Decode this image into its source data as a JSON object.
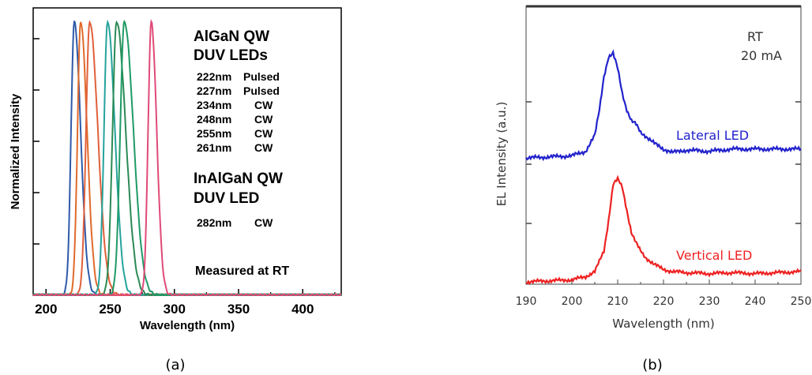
{
  "chart_data": [
    {
      "type": "line",
      "panel_label": "(a)",
      "xlabel": "Wavelength  (nm)",
      "ylabel": "Normalized Intensity",
      "xlim": [
        190,
        430
      ],
      "ylim": [
        0,
        1.05
      ],
      "xticks": [
        200,
        250,
        300,
        350,
        400
      ],
      "annotations": {
        "group1_title": [
          "AlGaN QW",
          "DUV LEDs"
        ],
        "group1_entries": [
          {
            "wl": "222nm",
            "mode": "Pulsed"
          },
          {
            "wl": "227nm",
            "mode": "Pulsed"
          },
          {
            "wl": "234nm",
            "mode": "CW"
          },
          {
            "wl": "248nm",
            "mode": "CW"
          },
          {
            "wl": "255nm",
            "mode": "CW"
          },
          {
            "wl": "261nm",
            "mode": "CW"
          }
        ],
        "group2_title": [
          "InAlGaN QW",
          "DUV LED"
        ],
        "group2_entries": [
          {
            "wl": "282nm",
            "mode": "CW"
          }
        ],
        "footer": "Measured at RT"
      },
      "series": [
        {
          "peak": 222,
          "width_l": 3.5,
          "width_r": 7,
          "color": "#2f5aa8"
        },
        {
          "peak": 227,
          "width_l": 3.5,
          "width_r": 7,
          "color": "#e06a2c"
        },
        {
          "peak": 234,
          "width_l": 4,
          "width_r": 9,
          "color": "#e0603a"
        },
        {
          "peak": 248,
          "width_l": 4,
          "width_r": 8,
          "color": "#26a39c"
        },
        {
          "peak": 255,
          "width_l": 4.5,
          "width_r": 10,
          "color": "#2a8a55"
        },
        {
          "peak": 261,
          "width_l": 4.5,
          "width_r": 10,
          "color": "#1f9a66"
        },
        {
          "peak": 282,
          "width_l": 3.5,
          "width_r": 6,
          "color": "#e04a78"
        }
      ]
    },
    {
      "type": "line",
      "panel_label": "(b)",
      "xlabel": "Wavelength (nm)",
      "ylabel": "EL Intensity (a.u.)",
      "xlim": [
        190,
        250
      ],
      "xticks": [
        190,
        200,
        210,
        220,
        230,
        240,
        250
      ],
      "annotations": {
        "corner": [
          "RT",
          "20 mA"
        ]
      },
      "series": [
        {
          "name": "Lateral LED",
          "color": "#2222cc",
          "x": [
            190,
            195,
            200,
            203,
            205,
            206,
            207,
            208,
            209,
            210,
            211,
            212,
            213,
            214,
            215,
            216,
            218,
            220,
            222,
            225,
            230,
            235,
            240,
            245,
            250
          ],
          "y": [
            0.02,
            0.03,
            0.04,
            0.08,
            0.22,
            0.45,
            0.75,
            0.92,
            0.95,
            0.82,
            0.6,
            0.45,
            0.35,
            0.32,
            0.25,
            0.22,
            0.15,
            0.1,
            0.07,
            0.09,
            0.08,
            0.1,
            0.1,
            0.1,
            0.1
          ]
        },
        {
          "name": "Vertical LED",
          "color": "#ee2222",
          "x": [
            190,
            195,
            200,
            203,
            205,
            207,
            208,
            209,
            210,
            211,
            212,
            213,
            214,
            215,
            216,
            218,
            220,
            222,
            225,
            230,
            235,
            240,
            245,
            250
          ],
          "y": [
            0.0,
            0.01,
            0.02,
            0.05,
            0.1,
            0.3,
            0.6,
            0.95,
            1.0,
            0.92,
            0.7,
            0.48,
            0.38,
            0.3,
            0.24,
            0.17,
            0.12,
            0.1,
            0.09,
            0.08,
            0.09,
            0.08,
            0.09,
            0.1
          ]
        }
      ]
    }
  ]
}
